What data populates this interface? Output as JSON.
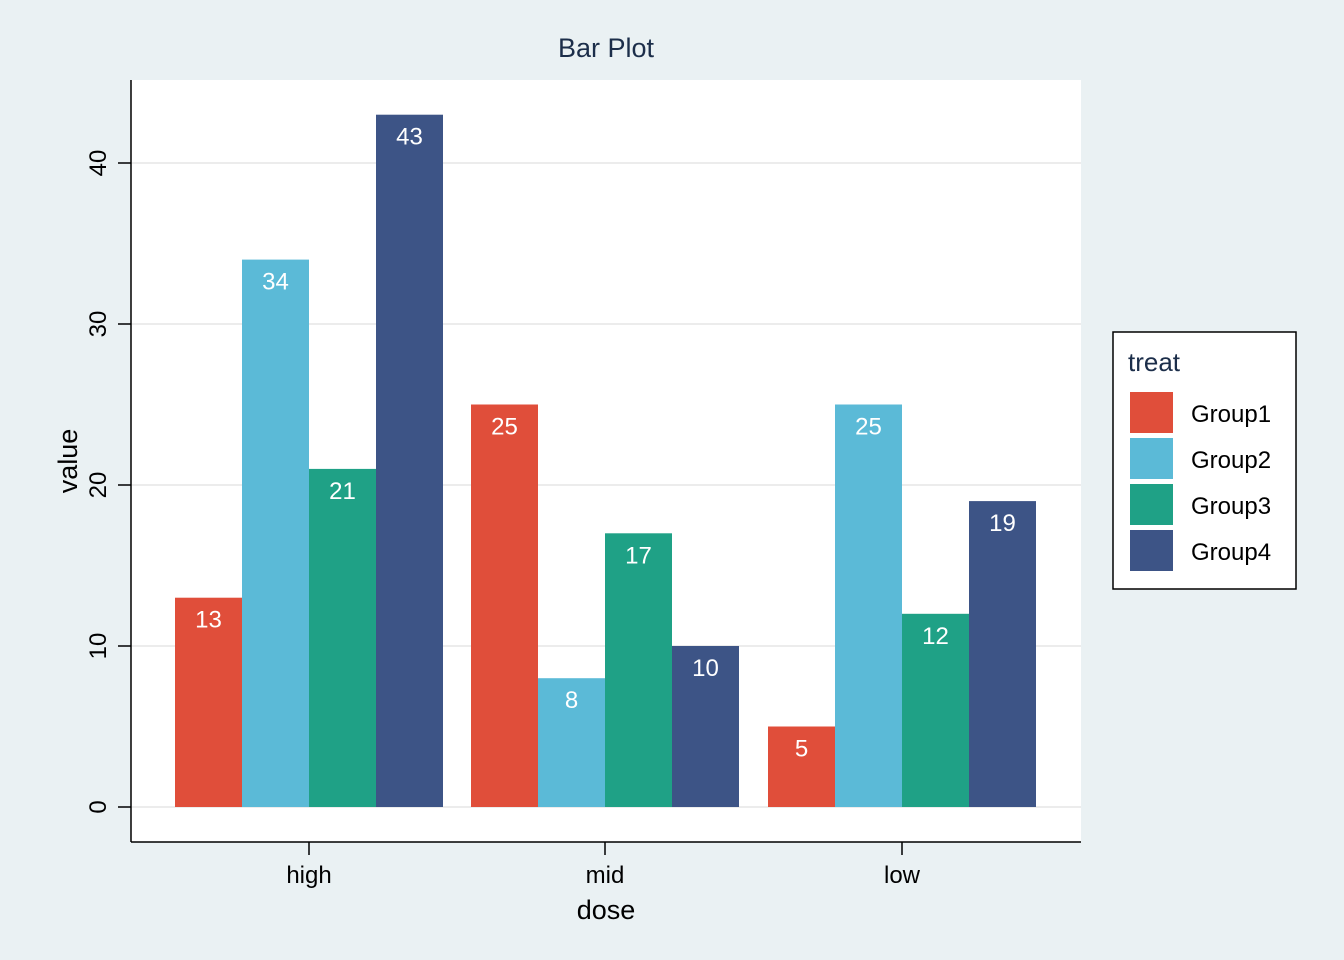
{
  "chart_data": {
    "type": "bar",
    "title": "Bar Plot",
    "xlabel": "dose",
    "ylabel": "value",
    "categories": [
      "high",
      "mid",
      "low"
    ],
    "ylim": [
      -2,
      45
    ],
    "yticks": [
      0,
      10,
      20,
      30,
      40
    ],
    "grid": true,
    "legend_position": "right",
    "legend_title": "treat",
    "series": [
      {
        "name": "Group1",
        "color": "#e04e3a",
        "values": [
          13,
          25,
          5
        ]
      },
      {
        "name": "Group2",
        "color": "#5bbad7",
        "values": [
          34,
          8,
          25
        ]
      },
      {
        "name": "Group3",
        "color": "#1fa186",
        "values": [
          21,
          17,
          12
        ]
      },
      {
        "name": "Group4",
        "color": "#3d5486",
        "values": [
          43,
          10,
          19
        ]
      }
    ]
  }
}
